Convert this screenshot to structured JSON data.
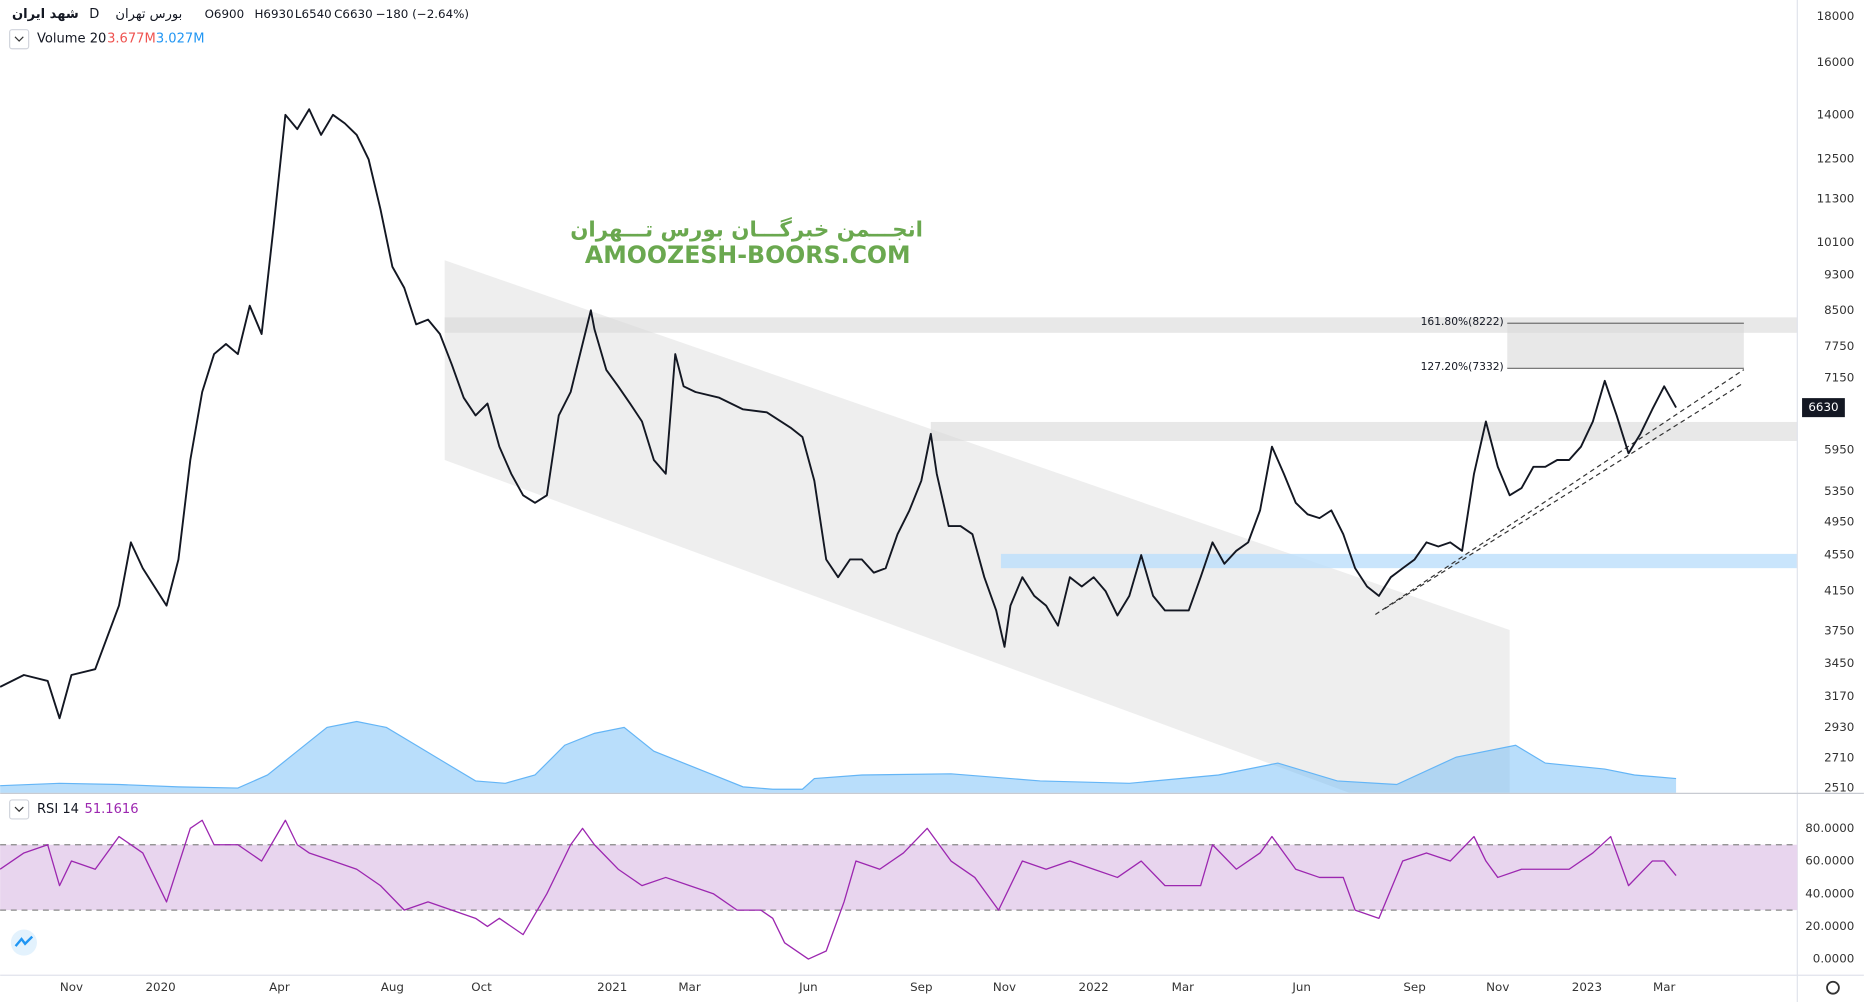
{
  "header": {
    "symbol": "شهد ایران",
    "interval": "D",
    "exchange": "بورس تهران",
    "open": "O6900",
    "high": "H6930",
    "low": "L6540",
    "close": "C6630",
    "change": "−180 (−2.64%)"
  },
  "volume_legend": {
    "name": "Volume 20",
    "value": "3.677M",
    "average": "3.027M"
  },
  "watermark": {
    "persian": "انجـــمن خبرگـــان بورس تـــهران",
    "latin": "AMOOZESH-BOORS.COM"
  },
  "chart_data": [
    {
      "type": "line",
      "log_scale": true,
      "color": "#131722",
      "xlim": [
        0,
        302.4
      ],
      "ylim": [
        2480,
        18770
      ],
      "xticks": [
        {
          "value": 12,
          "label": "Nov"
        },
        {
          "value": 27,
          "label": "2020"
        },
        {
          "value": 47,
          "label": "Apr"
        },
        {
          "value": 66,
          "label": "Aug"
        },
        {
          "value": 81,
          "label": "Oct"
        },
        {
          "value": 103,
          "label": "2021"
        },
        {
          "value": 116,
          "label": "Mar"
        },
        {
          "value": 136,
          "label": "Jun"
        },
        {
          "value": 155,
          "label": "Sep"
        },
        {
          "value": 169,
          "label": "Nov"
        },
        {
          "value": 184,
          "label": "2022"
        },
        {
          "value": 199,
          "label": "Mar"
        },
        {
          "value": 219,
          "label": "Jun"
        },
        {
          "value": 238,
          "label": "Sep"
        },
        {
          "value": 252,
          "label": "Nov"
        },
        {
          "value": 267,
          "label": "2023"
        },
        {
          "value": 280,
          "label": "Mar"
        }
      ],
      "yticks": [
        2510,
        2710,
        2930,
        3170,
        3450,
        3750,
        4150,
        4550,
        4950,
        5350,
        5950,
        7150,
        7750,
        8500,
        9300,
        10100,
        11300,
        12500,
        14000,
        16000,
        18000
      ],
      "x": [
        0,
        4,
        8,
        10,
        12,
        16,
        20,
        22,
        24,
        28,
        30,
        32,
        34,
        36,
        38,
        40,
        42,
        44,
        46,
        48,
        50,
        52,
        54,
        56,
        58,
        60,
        62,
        64,
        66,
        68,
        70,
        72,
        74,
        76,
        78,
        80,
        82,
        84,
        86,
        88,
        90,
        92,
        94,
        96,
        98,
        99.4,
        100,
        102,
        104,
        106,
        108,
        110,
        112,
        113.6,
        115,
        117,
        121,
        125,
        129,
        133,
        135,
        137,
        139,
        141,
        143,
        145,
        147,
        149,
        151,
        153,
        155,
        156.6,
        157.6,
        159.6,
        161.6,
        163.6,
        165.6,
        167.6,
        169,
        170,
        172,
        174,
        176,
        178,
        180,
        182,
        184,
        186,
        188,
        190,
        192,
        194,
        196,
        198,
        200,
        202,
        204,
        206,
        208,
        210,
        212,
        214,
        216,
        218,
        220,
        222,
        224,
        226,
        228,
        230,
        232,
        234,
        236,
        238,
        240,
        242,
        244,
        246,
        248,
        250,
        252,
        254,
        256,
        258,
        260,
        262,
        264,
        266,
        268,
        270,
        272,
        274,
        276,
        278,
        280,
        282
      ],
      "values": [
        3250,
        3350,
        3300,
        3000,
        3350,
        3400,
        4000,
        4700,
        4400,
        4000,
        4500,
        5800,
        6900,
        7600,
        7800,
        7600,
        8600,
        8000,
        10500,
        14000,
        13500,
        14200,
        13300,
        14000,
        13700,
        13300,
        12500,
        11000,
        9500,
        9000,
        8200,
        8300,
        8000,
        7400,
        6800,
        6500,
        6700,
        6000,
        5600,
        5300,
        5200,
        5300,
        6500,
        6900,
        7800,
        8500,
        8100,
        7300,
        7000,
        6700,
        6400,
        5800,
        5600,
        7600,
        7000,
        6900,
        6800,
        6600,
        6550,
        6300,
        6150,
        5500,
        4500,
        4300,
        4500,
        4500,
        4350,
        4400,
        4800,
        5100,
        5500,
        6200,
        5600,
        4900,
        4900,
        4800,
        4300,
        3950,
        3600,
        4000,
        4300,
        4100,
        4000,
        3800,
        4300,
        4200,
        4300,
        4150,
        3900,
        4100,
        4550,
        4100,
        3950,
        3950,
        3950,
        4300,
        4700,
        4450,
        4600,
        4700,
        5100,
        6000,
        5600,
        5200,
        5050,
        5000,
        5100,
        4800,
        4400,
        4200,
        4100,
        4300,
        4400,
        4500,
        4700,
        4650,
        4700,
        4600,
        5600,
        6400,
        5700,
        5300,
        5400,
        5700,
        5700,
        5800,
        5800,
        6000,
        6400,
        7100,
        6500,
        5900,
        6200,
        6600,
        7000,
        6630
      ],
      "fib_levels": [
        {
          "label": "161.80%(8222)",
          "value": 8222
        },
        {
          "label": "127.20%(7332)",
          "value": 7332
        }
      ],
      "volume": {
        "color": "#64b5f6",
        "ylim": [
          0,
          20
        ],
        "x": [
          0,
          10,
          20,
          30,
          40,
          45,
          50,
          55,
          60,
          65,
          70,
          75,
          80,
          85,
          90,
          95,
          100,
          105,
          110,
          115,
          120,
          125,
          130,
          135,
          137,
          145,
          160,
          175,
          190,
          205,
          215,
          225,
          235,
          245,
          255,
          260,
          270,
          275,
          282
        ],
        "values": [
          0.6,
          0.8,
          0.7,
          0.5,
          0.4,
          1.5,
          3.5,
          5.5,
          6,
          5.5,
          4,
          2.5,
          1,
          0.8,
          1.5,
          4,
          5,
          5.5,
          3.5,
          2.5,
          1.5,
          0.5,
          0.3,
          0.3,
          1.2,
          1.5,
          1.6,
          1,
          0.8,
          1.5,
          2.5,
          1,
          0.7,
          3,
          4,
          2.5,
          2,
          1.5,
          1.2
        ]
      }
    },
    {
      "type": "line",
      "title": "RSI 14",
      "color": "#9c27b0",
      "xlim": [
        0,
        302.4
      ],
      "ylim": [
        -9.5,
        99.6
      ],
      "band": [
        30,
        70
      ],
      "band_color": "#e8d5ee",
      "yticks": [
        {
          "value": 0,
          "label": "0.0000"
        },
        {
          "value": 20,
          "label": "20.0000"
        },
        {
          "value": 40,
          "label": "40.0000"
        },
        {
          "value": 60,
          "label": "60.0000"
        },
        {
          "value": 80,
          "label": "80.0000"
        }
      ],
      "x": [
        0,
        4,
        8,
        10,
        12,
        16,
        20,
        24,
        28,
        32,
        34,
        36,
        40,
        44,
        48,
        50,
        52,
        56,
        60,
        64,
        68,
        72,
        76,
        80,
        82,
        84,
        88,
        92,
        96,
        98,
        100,
        104,
        108,
        112,
        116,
        120,
        124,
        128,
        130,
        132,
        136,
        139,
        142,
        144,
        148,
        152,
        156,
        160,
        164,
        168,
        172,
        176,
        180,
        184,
        188,
        192,
        196,
        200,
        202,
        204,
        208,
        212,
        214,
        218,
        222,
        226,
        228,
        232,
        236,
        240,
        244,
        248,
        250,
        252,
        256,
        260,
        264,
        268,
        271,
        274,
        278,
        280,
        282
      ],
      "values": [
        55,
        65,
        70,
        45,
        60,
        55,
        75,
        65,
        35,
        80,
        85,
        70,
        70,
        60,
        85,
        70,
        65,
        60,
        55,
        45,
        30,
        35,
        30,
        25,
        20,
        25,
        15,
        40,
        70,
        80,
        70,
        55,
        45,
        50,
        45,
        40,
        30,
        30,
        25,
        10,
        0,
        5,
        35,
        60,
        55,
        65,
        80,
        60,
        50,
        30,
        60,
        55,
        60,
        55,
        50,
        60,
        45,
        45,
        45,
        70,
        55,
        65,
        75,
        55,
        50,
        50,
        30,
        25,
        60,
        65,
        60,
        75,
        60,
        50,
        55,
        55,
        55,
        65,
        75,
        45,
        60,
        60,
        51.1616
      ]
    }
  ]
}
